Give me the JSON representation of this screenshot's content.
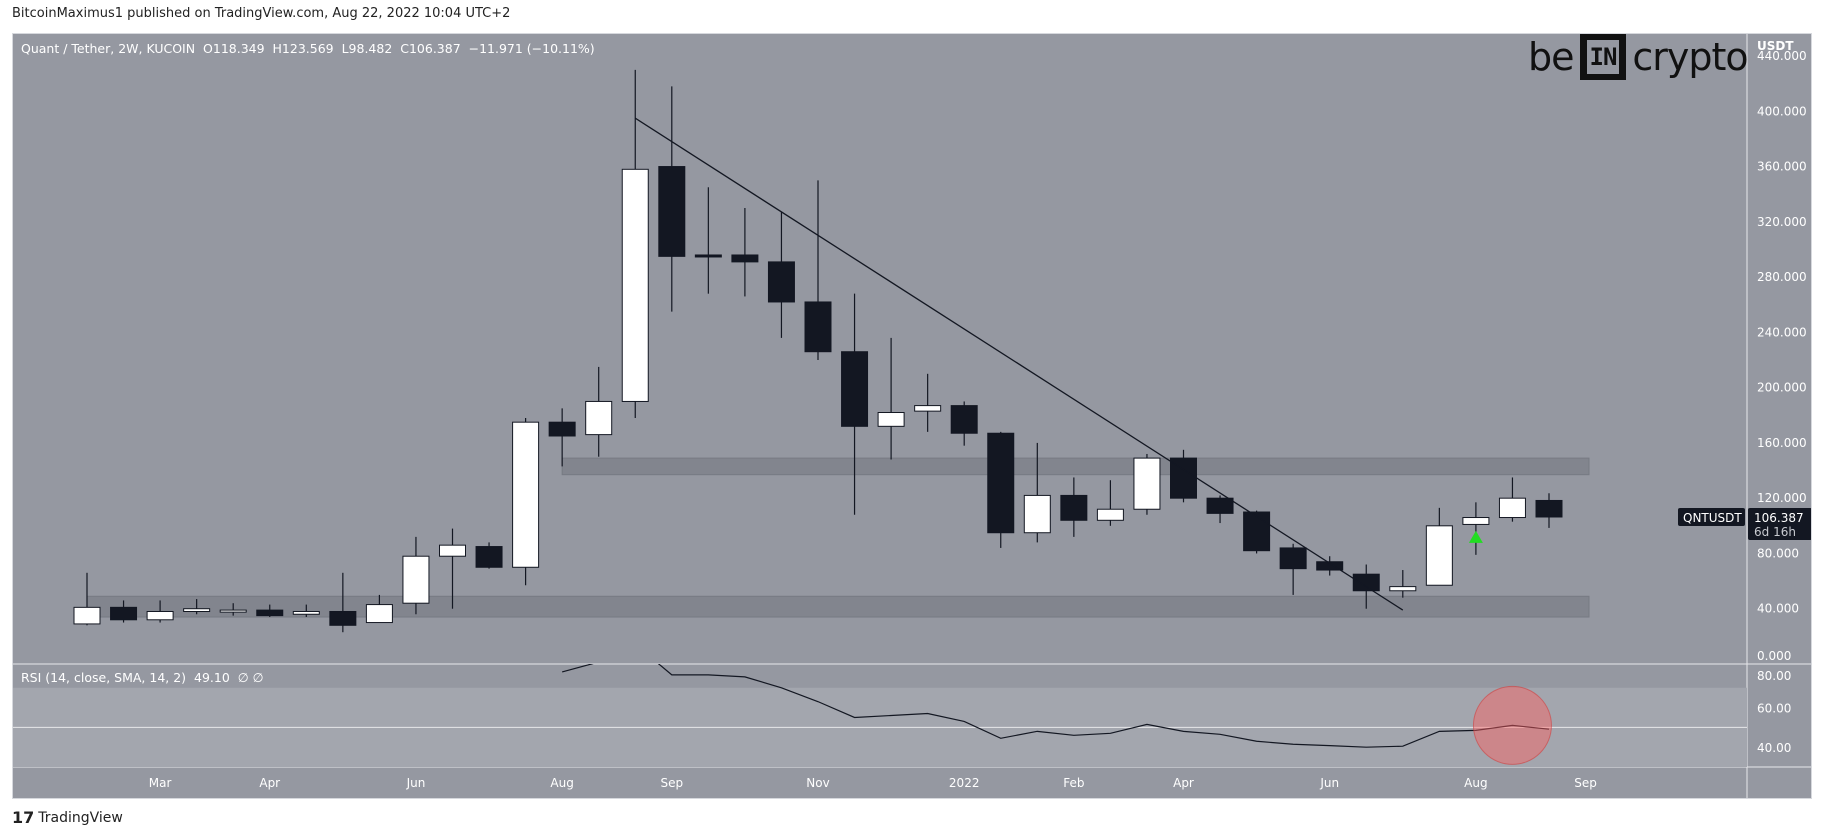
{
  "publisher_line": "BitcoinMaximus1 published on TradingView.com, Aug 22, 2022 10:04 UTC+2",
  "legend": {
    "symbol": "Quant / Tether, 2W, KUCOIN",
    "o": "O118.349",
    "h": "H123.569",
    "l": "L98.482",
    "c": "C106.387",
    "change": "−11.971 (−10.11%)"
  },
  "rsi_legend": {
    "label": "RSI (14, close, SMA, 14, 2)",
    "value": "49.10",
    "extra": "∅ ∅"
  },
  "logo": {
    "left": "be",
    "mid": "IN",
    "right": "crypto"
  },
  "footer": "TradingView",
  "colors": {
    "bg": "#9598a1",
    "up": "#ffffff",
    "down": "#131722",
    "zone": "#82858e",
    "rsi_band": "#a3a6ae",
    "marker": "#ff5f5f",
    "arrow": "#22dd22"
  },
  "chart_data": {
    "type": "candlestick",
    "title": "Quant / Tether, 2W, KUCOIN",
    "ylabel": "USDT",
    "ylim": [
      0,
      440
    ],
    "yticks": [
      "0.000",
      "40.000",
      "80.000",
      "120.000",
      "160.000",
      "200.000",
      "240.000",
      "280.000",
      "320.000",
      "360.000",
      "400.000",
      "440.000"
    ],
    "ytick_values": [
      0,
      40,
      80,
      120,
      160,
      200,
      240,
      280,
      320,
      360,
      400,
      440
    ],
    "xticks": [
      {
        "label": "Mar",
        "index": 2
      },
      {
        "label": "Apr",
        "index": 5
      },
      {
        "label": "Jun",
        "index": 9
      },
      {
        "label": "Aug",
        "index": 13
      },
      {
        "label": "Sep",
        "index": 16
      },
      {
        "label": "Nov",
        "index": 20
      },
      {
        "label": "2022",
        "index": 24
      },
      {
        "label": "Feb",
        "index": 27
      },
      {
        "label": "Apr",
        "index": 30
      },
      {
        "label": "Jun",
        "index": 34
      },
      {
        "label": "Aug",
        "index": 38
      },
      {
        "label": "Sep",
        "index": 41
      }
    ],
    "ohlc": [
      [
        29,
        66,
        28,
        41
      ],
      [
        41,
        46,
        30,
        32
      ],
      [
        32,
        46,
        30,
        38
      ],
      [
        38,
        47,
        36,
        40
      ],
      [
        39,
        44,
        35,
        39
      ],
      [
        39,
        43,
        34,
        35
      ],
      [
        36,
        43,
        34,
        38
      ],
      [
        38,
        66,
        23,
        28
      ],
      [
        30,
        50,
        30,
        43
      ],
      [
        44,
        92,
        36,
        78
      ],
      [
        78,
        98,
        40,
        86
      ],
      [
        85,
        88,
        69,
        70
      ],
      [
        70,
        178,
        57,
        175
      ],
      [
        175,
        185,
        143,
        165
      ],
      [
        166,
        215,
        150,
        190
      ],
      [
        190,
        430,
        178,
        358
      ],
      [
        360,
        418,
        255,
        295
      ],
      [
        296,
        345,
        268,
        295
      ],
      [
        296,
        330,
        266,
        291
      ],
      [
        291,
        327,
        236,
        262
      ],
      [
        262,
        350,
        220,
        226
      ],
      [
        226,
        268,
        108,
        172
      ],
      [
        172,
        236,
        148,
        182
      ],
      [
        183,
        210,
        168,
        187
      ],
      [
        187,
        190,
        158,
        167
      ],
      [
        167,
        168,
        84,
        95
      ],
      [
        95,
        160,
        88,
        122
      ],
      [
        122,
        135,
        92,
        104
      ],
      [
        104,
        133,
        100,
        112
      ],
      [
        112,
        152,
        108,
        149
      ],
      [
        149,
        155,
        117,
        120
      ],
      [
        120,
        122,
        102,
        109
      ],
      [
        110,
        111,
        80,
        82
      ],
      [
        84,
        87,
        50,
        69
      ],
      [
        74,
        78,
        64,
        68
      ],
      [
        65,
        72,
        40,
        53
      ],
      [
        53,
        68,
        48,
        56
      ],
      [
        57,
        113,
        57,
        100
      ],
      [
        101,
        117,
        79,
        106
      ],
      [
        106,
        135,
        103,
        120
      ],
      [
        118.349,
        123.569,
        98.482,
        106.387
      ]
    ],
    "zones": [
      {
        "from": 137,
        "to": 149,
        "start": 13
      },
      {
        "from": 34,
        "to": 49,
        "start": 0
      }
    ],
    "trendline": {
      "from": {
        "index": 15,
        "price": 395
      },
      "to": {
        "index": 36,
        "price": 39
      }
    },
    "buy_arrow_index": 38,
    "last_price": {
      "symbol": "QNTUSDT",
      "value": "106.387",
      "countdown": "6d 16h"
    },
    "rsi": {
      "ylim": [
        30,
        82
      ],
      "yticks": [
        "40.00",
        "60.00",
        "80.00"
      ],
      "ytick_values": [
        40,
        60,
        80
      ],
      "band": [
        30,
        70
      ],
      "mid": 50,
      "values": [
        null,
        null,
        null,
        null,
        null,
        null,
        null,
        null,
        null,
        null,
        null,
        null,
        null,
        78,
        83,
        92,
        76.5,
        76.5,
        75.5,
        70,
        63,
        55,
        56,
        57,
        53,
        44.5,
        48,
        46,
        47,
        51.5,
        48,
        46.5,
        43,
        41.5,
        40.8,
        40,
        40.5,
        48,
        48.5,
        51,
        49.1
      ],
      "highlight_index": 39
    }
  }
}
